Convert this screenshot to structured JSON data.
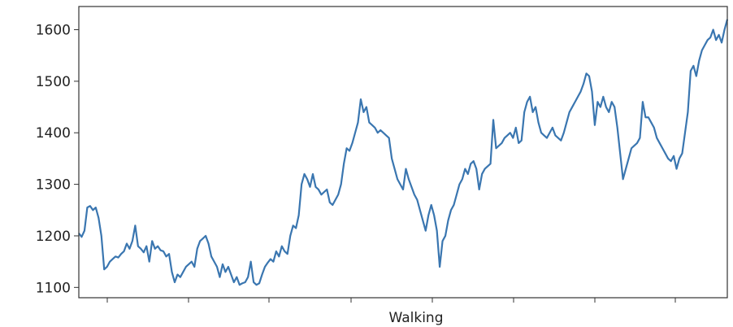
{
  "chart_data": {
    "type": "line",
    "title": "",
    "xlabel": "Walking",
    "ylabel": "",
    "ylim": [
      1080,
      1645
    ],
    "y_ticks": [
      1100,
      1200,
      1300,
      1400,
      1500,
      1600
    ],
    "y_tick_labels": [
      "1100",
      "1200",
      "1300",
      "1400",
      "1500",
      "1600"
    ],
    "x_tick_labels": [],
    "grid": false,
    "legend": "none",
    "series": [
      {
        "color": "#3a76b0",
        "values": [
          1205,
          1198,
          1210,
          1255,
          1258,
          1250,
          1255,
          1235,
          1200,
          1135,
          1140,
          1150,
          1155,
          1160,
          1158,
          1165,
          1170,
          1185,
          1175,
          1190,
          1220,
          1180,
          1175,
          1168,
          1180,
          1150,
          1190,
          1175,
          1180,
          1172,
          1170,
          1160,
          1165,
          1130,
          1110,
          1125,
          1120,
          1130,
          1140,
          1145,
          1150,
          1140,
          1175,
          1190,
          1195,
          1200,
          1185,
          1160,
          1150,
          1140,
          1120,
          1145,
          1130,
          1140,
          1125,
          1110,
          1120,
          1105,
          1108,
          1110,
          1120,
          1150,
          1110,
          1105,
          1108,
          1125,
          1140,
          1148,
          1155,
          1150,
          1170,
          1160,
          1180,
          1170,
          1165,
          1200,
          1220,
          1215,
          1240,
          1300,
          1320,
          1310,
          1295,
          1320,
          1295,
          1290,
          1280,
          1285,
          1290,
          1265,
          1260,
          1270,
          1280,
          1300,
          1340,
          1370,
          1365,
          1380,
          1400,
          1420,
          1465,
          1440,
          1450,
          1420,
          1415,
          1410,
          1400,
          1405,
          1400,
          1395,
          1390,
          1350,
          1330,
          1310,
          1300,
          1290,
          1330,
          1310,
          1295,
          1280,
          1270,
          1250,
          1230,
          1210,
          1240,
          1260,
          1240,
          1210,
          1140,
          1190,
          1200,
          1230,
          1250,
          1260,
          1280,
          1300,
          1310,
          1330,
          1320,
          1340,
          1345,
          1330,
          1290,
          1320,
          1330,
          1335,
          1340,
          1425,
          1370,
          1375,
          1380,
          1390,
          1395,
          1400,
          1390,
          1410,
          1380,
          1385,
          1440,
          1460,
          1470,
          1440,
          1450,
          1420,
          1400,
          1395,
          1390,
          1400,
          1410,
          1395,
          1390,
          1385,
          1400,
          1420,
          1440,
          1450,
          1460,
          1470,
          1480,
          1495,
          1515,
          1510,
          1480,
          1415,
          1460,
          1450,
          1470,
          1450,
          1440,
          1460,
          1450,
          1410,
          1360,
          1310,
          1330,
          1350,
          1370,
          1375,
          1380,
          1390,
          1460,
          1430,
          1430,
          1420,
          1410,
          1390,
          1380,
          1370,
          1360,
          1350,
          1345,
          1355,
          1330,
          1350,
          1360,
          1400,
          1440,
          1520,
          1530,
          1510,
          1540,
          1560,
          1570,
          1580,
          1585,
          1600,
          1580,
          1590,
          1575,
          1600,
          1620
        ]
      }
    ]
  }
}
